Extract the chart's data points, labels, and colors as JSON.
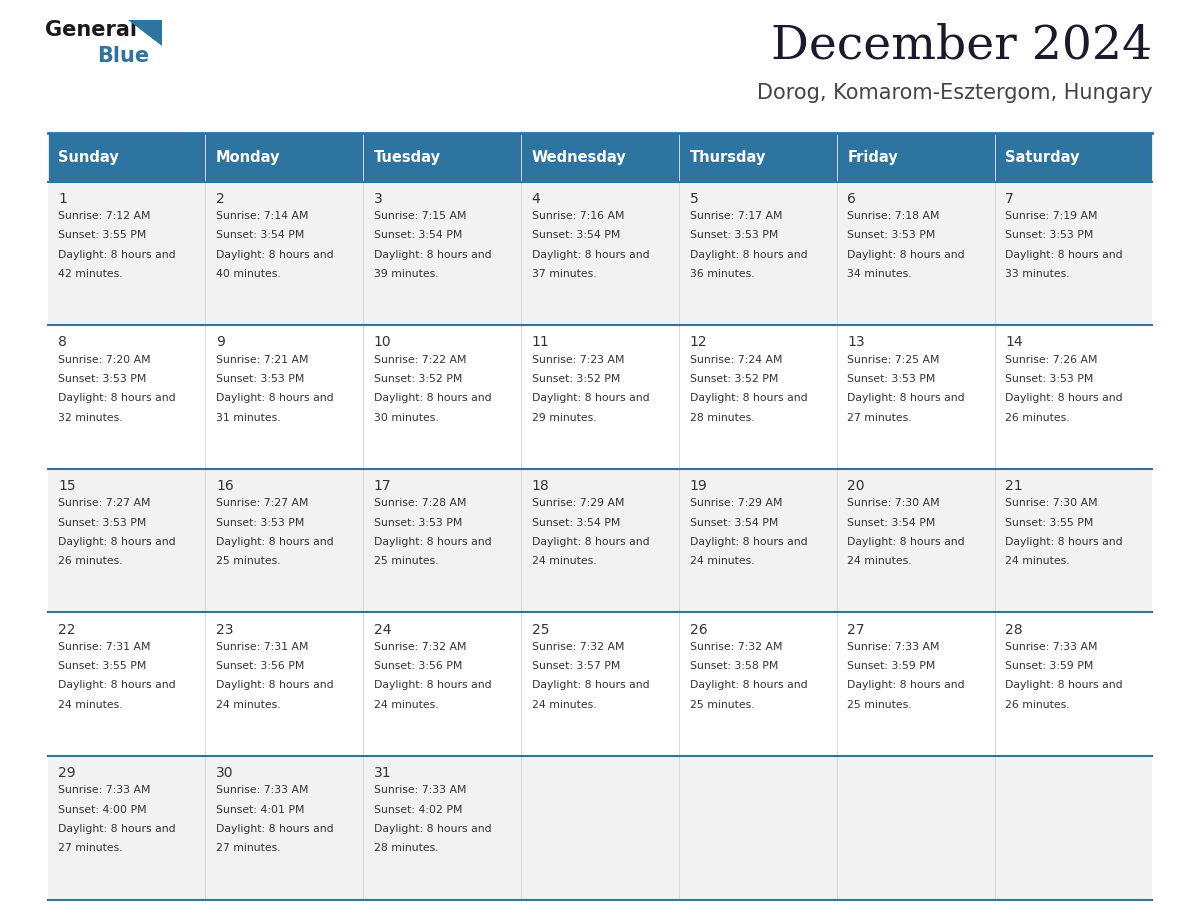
{
  "title": "December 2024",
  "subtitle": "Dorog, Komarom-Esztergom, Hungary",
  "days_of_week": [
    "Sunday",
    "Monday",
    "Tuesday",
    "Wednesday",
    "Thursday",
    "Friday",
    "Saturday"
  ],
  "header_bg": "#2E74A0",
  "header_text": "#FFFFFF",
  "row_bg_odd": "#F2F2F2",
  "row_bg_even": "#FFFFFF",
  "separator_color": "#2E74A0",
  "text_color": "#333333",
  "calendar_data": [
    [
      {
        "day": 1,
        "sunrise": "7:12 AM",
        "sunset": "3:55 PM",
        "daylight": "8 hours and 42 minutes"
      },
      {
        "day": 2,
        "sunrise": "7:14 AM",
        "sunset": "3:54 PM",
        "daylight": "8 hours and 40 minutes"
      },
      {
        "day": 3,
        "sunrise": "7:15 AM",
        "sunset": "3:54 PM",
        "daylight": "8 hours and 39 minutes"
      },
      {
        "day": 4,
        "sunrise": "7:16 AM",
        "sunset": "3:54 PM",
        "daylight": "8 hours and 37 minutes"
      },
      {
        "day": 5,
        "sunrise": "7:17 AM",
        "sunset": "3:53 PM",
        "daylight": "8 hours and 36 minutes"
      },
      {
        "day": 6,
        "sunrise": "7:18 AM",
        "sunset": "3:53 PM",
        "daylight": "8 hours and 34 minutes"
      },
      {
        "day": 7,
        "sunrise": "7:19 AM",
        "sunset": "3:53 PM",
        "daylight": "8 hours and 33 minutes"
      }
    ],
    [
      {
        "day": 8,
        "sunrise": "7:20 AM",
        "sunset": "3:53 PM",
        "daylight": "8 hours and 32 minutes"
      },
      {
        "day": 9,
        "sunrise": "7:21 AM",
        "sunset": "3:53 PM",
        "daylight": "8 hours and 31 minutes"
      },
      {
        "day": 10,
        "sunrise": "7:22 AM",
        "sunset": "3:52 PM",
        "daylight": "8 hours and 30 minutes"
      },
      {
        "day": 11,
        "sunrise": "7:23 AM",
        "sunset": "3:52 PM",
        "daylight": "8 hours and 29 minutes"
      },
      {
        "day": 12,
        "sunrise": "7:24 AM",
        "sunset": "3:52 PM",
        "daylight": "8 hours and 28 minutes"
      },
      {
        "day": 13,
        "sunrise": "7:25 AM",
        "sunset": "3:53 PM",
        "daylight": "8 hours and 27 minutes"
      },
      {
        "day": 14,
        "sunrise": "7:26 AM",
        "sunset": "3:53 PM",
        "daylight": "8 hours and 26 minutes"
      }
    ],
    [
      {
        "day": 15,
        "sunrise": "7:27 AM",
        "sunset": "3:53 PM",
        "daylight": "8 hours and 26 minutes"
      },
      {
        "day": 16,
        "sunrise": "7:27 AM",
        "sunset": "3:53 PM",
        "daylight": "8 hours and 25 minutes"
      },
      {
        "day": 17,
        "sunrise": "7:28 AM",
        "sunset": "3:53 PM",
        "daylight": "8 hours and 25 minutes"
      },
      {
        "day": 18,
        "sunrise": "7:29 AM",
        "sunset": "3:54 PM",
        "daylight": "8 hours and 24 minutes"
      },
      {
        "day": 19,
        "sunrise": "7:29 AM",
        "sunset": "3:54 PM",
        "daylight": "8 hours and 24 minutes"
      },
      {
        "day": 20,
        "sunrise": "7:30 AM",
        "sunset": "3:54 PM",
        "daylight": "8 hours and 24 minutes"
      },
      {
        "day": 21,
        "sunrise": "7:30 AM",
        "sunset": "3:55 PM",
        "daylight": "8 hours and 24 minutes"
      }
    ],
    [
      {
        "day": 22,
        "sunrise": "7:31 AM",
        "sunset": "3:55 PM",
        "daylight": "8 hours and 24 minutes"
      },
      {
        "day": 23,
        "sunrise": "7:31 AM",
        "sunset": "3:56 PM",
        "daylight": "8 hours and 24 minutes"
      },
      {
        "day": 24,
        "sunrise": "7:32 AM",
        "sunset": "3:56 PM",
        "daylight": "8 hours and 24 minutes"
      },
      {
        "day": 25,
        "sunrise": "7:32 AM",
        "sunset": "3:57 PM",
        "daylight": "8 hours and 24 minutes"
      },
      {
        "day": 26,
        "sunrise": "7:32 AM",
        "sunset": "3:58 PM",
        "daylight": "8 hours and 25 minutes"
      },
      {
        "day": 27,
        "sunrise": "7:33 AM",
        "sunset": "3:59 PM",
        "daylight": "8 hours and 25 minutes"
      },
      {
        "day": 28,
        "sunrise": "7:33 AM",
        "sunset": "3:59 PM",
        "daylight": "8 hours and 26 minutes"
      }
    ],
    [
      {
        "day": 29,
        "sunrise": "7:33 AM",
        "sunset": "4:00 PM",
        "daylight": "8 hours and 27 minutes"
      },
      {
        "day": 30,
        "sunrise": "7:33 AM",
        "sunset": "4:01 PM",
        "daylight": "8 hours and 27 minutes"
      },
      {
        "day": 31,
        "sunrise": "7:33 AM",
        "sunset": "4:02 PM",
        "daylight": "8 hours and 28 minutes"
      },
      null,
      null,
      null,
      null
    ]
  ]
}
